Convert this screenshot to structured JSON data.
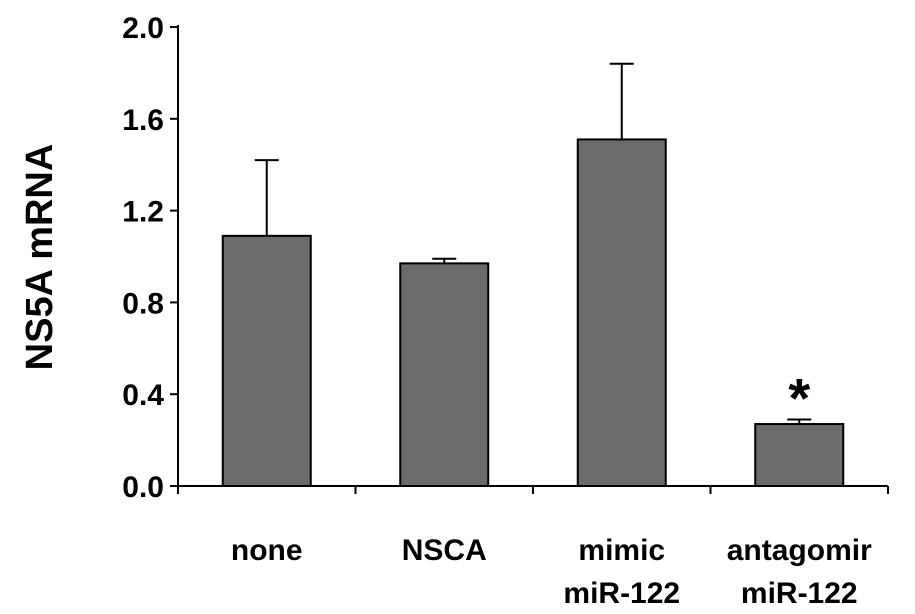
{
  "chart_data": {
    "type": "bar",
    "categories": [
      [
        "none"
      ],
      [
        "NSCA"
      ],
      [
        "mimic",
        "miR-122"
      ],
      [
        "antagomir",
        "miR-122"
      ]
    ],
    "values": [
      1.09,
      0.97,
      1.51,
      0.27
    ],
    "error_upper": [
      1.42,
      0.99,
      1.84,
      0.29
    ],
    "ylabel": "NS5A mRNA",
    "xlabel": "",
    "title": "",
    "ylim": [
      0,
      2.0
    ],
    "yticks": [
      "0.0",
      "0.4",
      "0.8",
      "1.2",
      "1.6",
      "2.0"
    ],
    "ytick_values": [
      0,
      0.4,
      0.8,
      1.2,
      1.6,
      2.0
    ],
    "annotations": [
      {
        "category_index": 3,
        "text": "*"
      }
    ],
    "bar_color": "#6b6b6b",
    "grid": false,
    "legend": "none"
  }
}
